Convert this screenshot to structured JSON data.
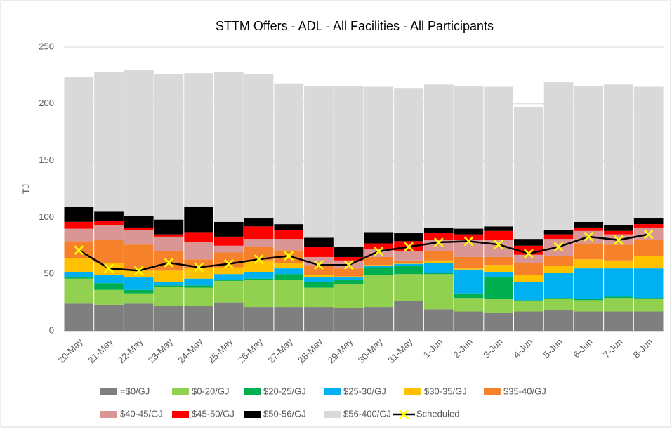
{
  "chart_data": {
    "type": "bar",
    "stacked": true,
    "title": "STTM Offers - ADL - All Facilities - All Participants",
    "y_label": "TJ",
    "categories": [
      "20-May",
      "21-May",
      "22-May",
      "23-May",
      "24-May",
      "25-May",
      "26-May",
      "27-May",
      "28-May",
      "29-May",
      "30-May",
      "31-May",
      "1-Jun",
      "2-Jun",
      "3-Jun",
      "4-Jun",
      "5-Jun",
      "6-Jun",
      "7-Jun",
      "8-Jun"
    ],
    "ylim": [
      0,
      250
    ],
    "yticks": [
      0,
      50,
      100,
      150,
      200,
      250
    ],
    "grid": true,
    "series": [
      {
        "name": "=$0/GJ",
        "color": "#7f7f7f",
        "values": [
          24,
          23,
          24,
          22,
          22,
          25,
          21,
          21,
          21,
          20,
          21,
          26,
          19,
          17,
          16,
          17,
          18,
          17,
          17,
          17
        ]
      },
      {
        "name": "$0-20/GJ",
        "color": "#92d050",
        "values": [
          22,
          13,
          9,
          17,
          16,
          19,
          24,
          24,
          17,
          21,
          28,
          24,
          31,
          12,
          12,
          9,
          10,
          10,
          12,
          11
        ]
      },
      {
        "name": "$20-25/GJ",
        "color": "#00b050",
        "values": [
          1,
          6,
          3,
          1,
          2,
          1,
          1,
          5,
          5,
          4,
          7,
          7,
          1,
          4,
          19,
          1,
          1,
          1,
          1,
          1
        ]
      },
      {
        "name": "$25-30/GJ",
        "color": "#00b0f0",
        "values": [
          5,
          7,
          11,
          3,
          6,
          5,
          6,
          5,
          4,
          2,
          1,
          2,
          9,
          21,
          5,
          16,
          22,
          27,
          25,
          26
        ]
      },
      {
        "name": "$30-35/GJ",
        "color": "#ffc000",
        "values": [
          12,
          11,
          6,
          10,
          9,
          6,
          10,
          5,
          2,
          1,
          1,
          1,
          2,
          1,
          6,
          6,
          6,
          8,
          7,
          11
        ]
      },
      {
        "name": "$35-40/GJ",
        "color": "#f5822a",
        "values": [
          15,
          20,
          23,
          17,
          8,
          13,
          12,
          11,
          8,
          7,
          7,
          2,
          8,
          10,
          7,
          11,
          9,
          14,
          14,
          14
        ]
      },
      {
        "name": "$40-45/GJ",
        "color": "#da9694",
        "values": [
          11,
          13,
          13,
          13,
          15,
          6,
          7,
          10,
          8,
          7,
          7,
          8,
          10,
          15,
          15,
          7,
          15,
          11,
          9,
          11
        ]
      },
      {
        "name": "$45-50/GJ",
        "color": "#ff0000",
        "values": [
          6,
          4,
          2,
          2,
          9,
          8,
          11,
          8,
          9,
          3,
          5,
          9,
          6,
          5,
          8,
          8,
          4,
          3,
          3,
          3
        ]
      },
      {
        "name": "$50-56/GJ",
        "color": "#000000",
        "values": [
          13,
          8,
          10,
          13,
          22,
          13,
          7,
          5,
          8,
          9,
          10,
          7,
          5,
          5,
          4,
          6,
          4,
          5,
          5,
          5
        ]
      },
      {
        "name": "$56-400/GJ",
        "color": "#d9d9d9",
        "values": [
          115,
          123,
          129,
          128,
          118,
          132,
          127,
          124,
          134,
          142,
          128,
          128,
          126,
          126,
          123,
          116,
          130,
          120,
          124,
          116
        ]
      },
      {
        "name": "Scheduled",
        "type": "line",
        "color": "#000000",
        "marker_color": "#ffff00",
        "values": [
          71,
          55,
          53,
          60,
          56,
          59,
          63,
          66,
          58,
          58,
          70,
          74,
          78,
          79,
          76,
          68,
          74,
          83,
          80,
          85
        ]
      }
    ]
  }
}
